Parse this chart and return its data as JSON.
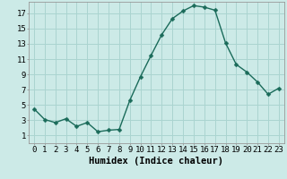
{
  "title": "",
  "xlabel": "Humidex (Indice chaleur)",
  "ylabel": "",
  "background_color": "#cceae7",
  "grid_color": "#aad4d0",
  "line_color": "#1a6b5a",
  "marker_color": "#1a6b5a",
  "x": [
    0,
    1,
    2,
    3,
    4,
    5,
    6,
    7,
    8,
    9,
    10,
    11,
    12,
    13,
    14,
    15,
    16,
    17,
    18,
    19,
    20,
    21,
    22,
    23
  ],
  "y": [
    4.5,
    3.1,
    2.7,
    3.2,
    2.2,
    2.7,
    1.5,
    1.7,
    1.8,
    5.6,
    8.7,
    11.5,
    14.2,
    16.3,
    17.3,
    18.0,
    17.8,
    17.4,
    13.1,
    10.3,
    9.3,
    8.0,
    6.4,
    7.2
  ],
  "xlim": [
    -0.5,
    23.5
  ],
  "ylim": [
    0,
    18.5
  ],
  "xtick_values": [
    0,
    1,
    2,
    3,
    4,
    5,
    6,
    7,
    8,
    9,
    10,
    11,
    12,
    13,
    14,
    15,
    16,
    17,
    18,
    19,
    20,
    21,
    22,
    23
  ],
  "ytick_values": [
    1,
    3,
    5,
    7,
    9,
    11,
    13,
    15,
    17
  ],
  "tick_fontsize": 6.5,
  "xlabel_fontsize": 7.5,
  "linewidth": 1.0,
  "markersize": 2.5
}
